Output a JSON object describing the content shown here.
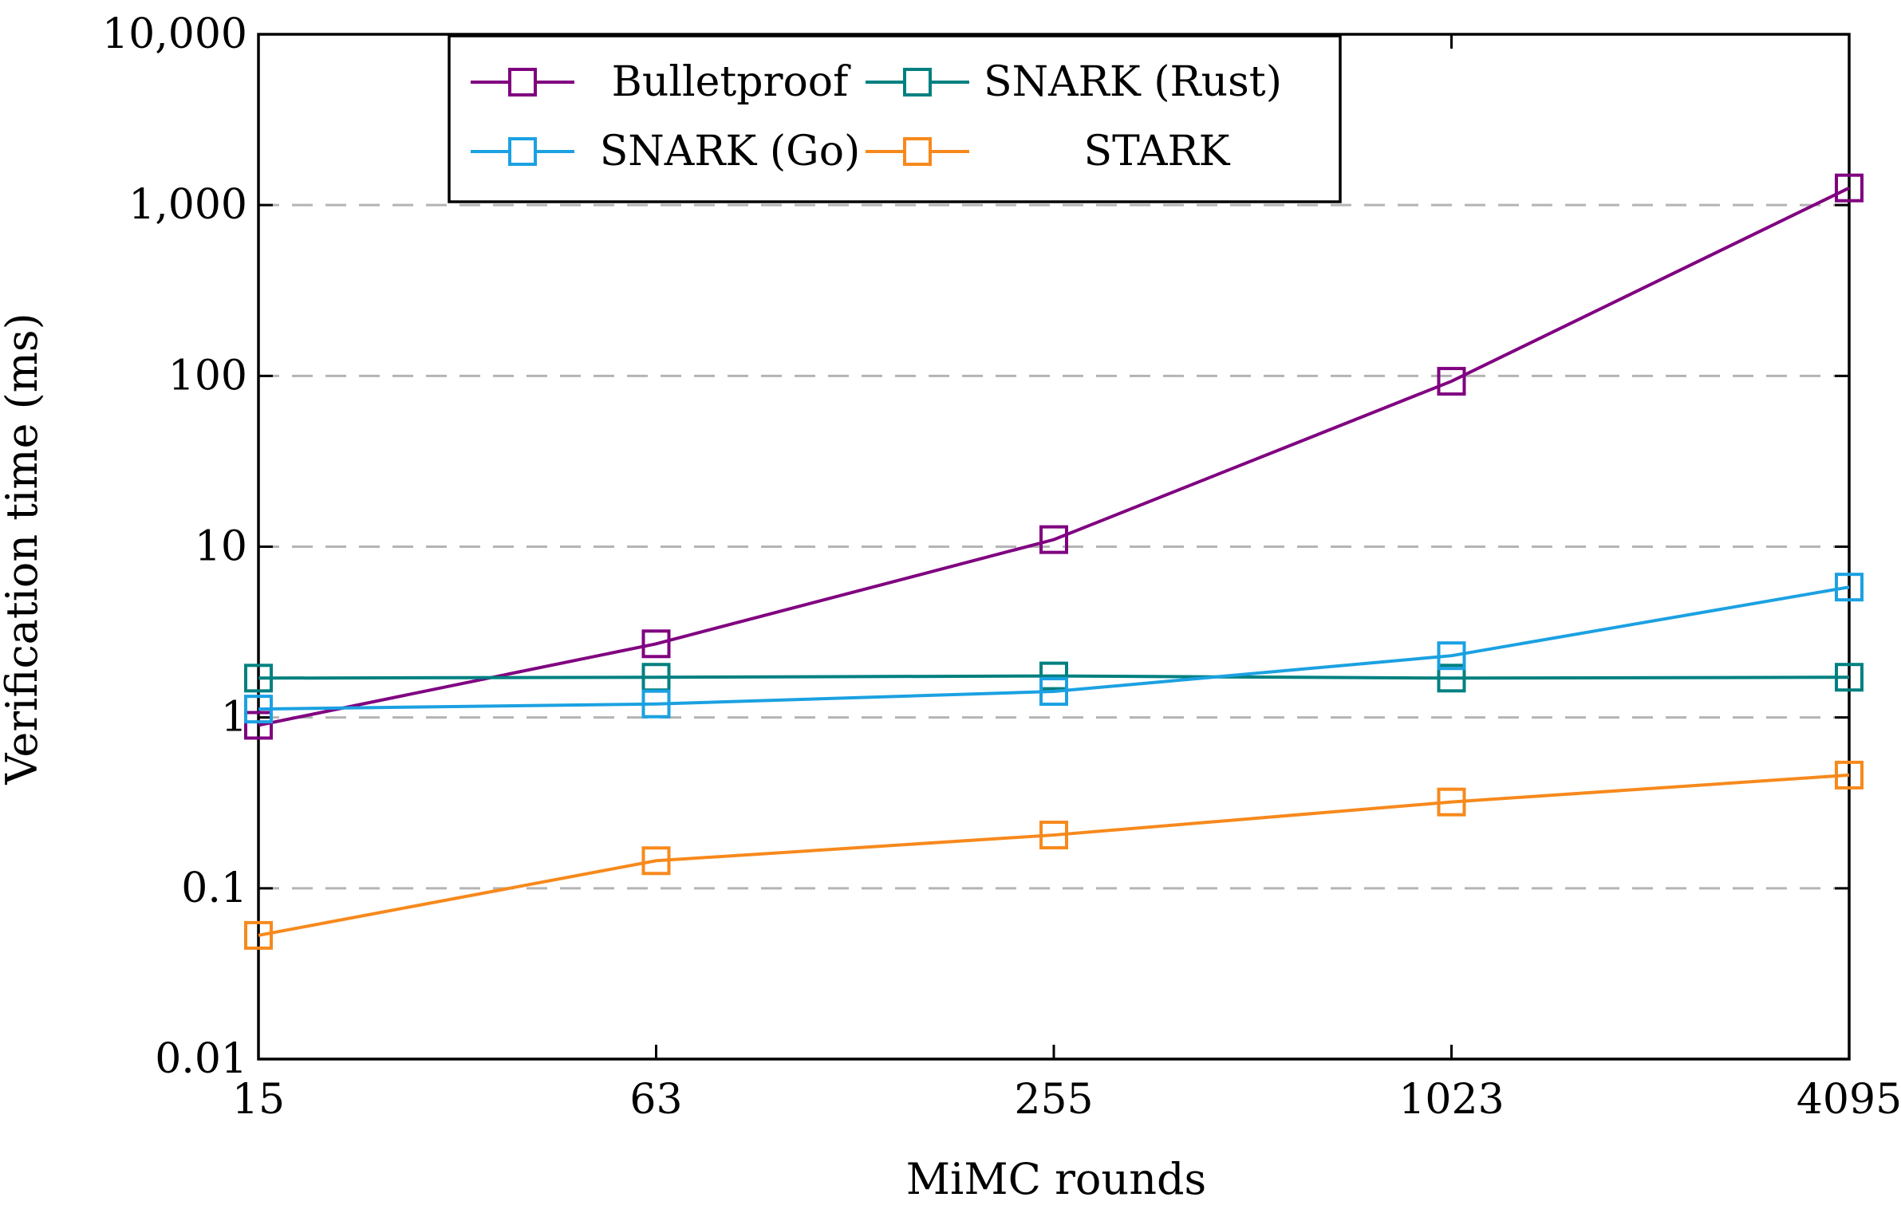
{
  "chart_data": {
    "type": "line",
    "title": "",
    "xlabel": "MiMC rounds",
    "ylabel": "Verification time (ms)",
    "x_scale": "categorical",
    "y_scale": "log",
    "categories": [
      "15",
      "63",
      "255",
      "1023",
      "4095"
    ],
    "ylim": [
      0.01,
      10000
    ],
    "y_ticks": [
      0.01,
      0.1,
      1,
      10,
      100,
      1000,
      10000
    ],
    "y_tick_labels": [
      "0.01",
      "0.1",
      "1",
      "10",
      "100",
      "1,000",
      "10,000"
    ],
    "grid": "horizontal dashed",
    "legend_position": "top-center",
    "series": [
      {
        "name": "Bulletproof",
        "color": "#800080",
        "marker": "square",
        "values": [
          0.9,
          2.7,
          11,
          93,
          1260
        ]
      },
      {
        "name": "SNARK (Rust)",
        "color": "#008080",
        "marker": "square",
        "values": [
          1.7,
          1.72,
          1.75,
          1.7,
          1.72
        ]
      },
      {
        "name": "SNARK (Go)",
        "color": "#1BA1E2",
        "marker": "square",
        "values": [
          1.12,
          1.2,
          1.42,
          2.3,
          5.8
        ]
      },
      {
        "name": "STARK",
        "color": "#F7891C",
        "marker": "square",
        "values": [
          0.053,
          0.145,
          0.205,
          0.32,
          0.46
        ]
      }
    ]
  }
}
